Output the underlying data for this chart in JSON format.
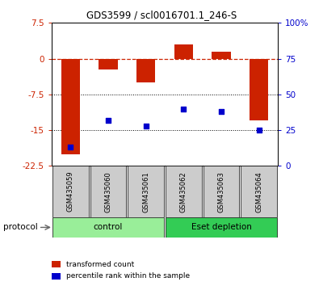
{
  "title": "GDS3599 / scl0016701.1_246-S",
  "samples": [
    "GSM435059",
    "GSM435060",
    "GSM435061",
    "GSM435062",
    "GSM435063",
    "GSM435064"
  ],
  "red_values": [
    -20.0,
    -2.2,
    -5.0,
    3.0,
    1.5,
    -13.0
  ],
  "blue_percentiles": [
    13,
    32,
    28,
    40,
    38,
    25
  ],
  "ylim_left": [
    -22.5,
    7.5
  ],
  "ylim_right": [
    0,
    100
  ],
  "yticks_left": [
    7.5,
    0,
    -7.5,
    -15,
    -22.5
  ],
  "yticks_right": [
    100,
    75,
    50,
    25,
    0
  ],
  "ytick_labels_left": [
    "7.5",
    "0",
    "-7.5",
    "-15",
    "-22.5"
  ],
  "ytick_labels_right": [
    "100%",
    "75",
    "50",
    "25",
    "0"
  ],
  "protocol_groups": [
    {
      "label": "control",
      "start": 0,
      "end": 3,
      "color": "#99EE99"
    },
    {
      "label": "Eset depletion",
      "start": 3,
      "end": 6,
      "color": "#33CC55"
    }
  ],
  "red_color": "#CC2200",
  "blue_color": "#0000CC",
  "bar_width": 0.5,
  "legend_red": "transformed count",
  "legend_blue": "percentile rank within the sample",
  "protocol_label": "protocol"
}
